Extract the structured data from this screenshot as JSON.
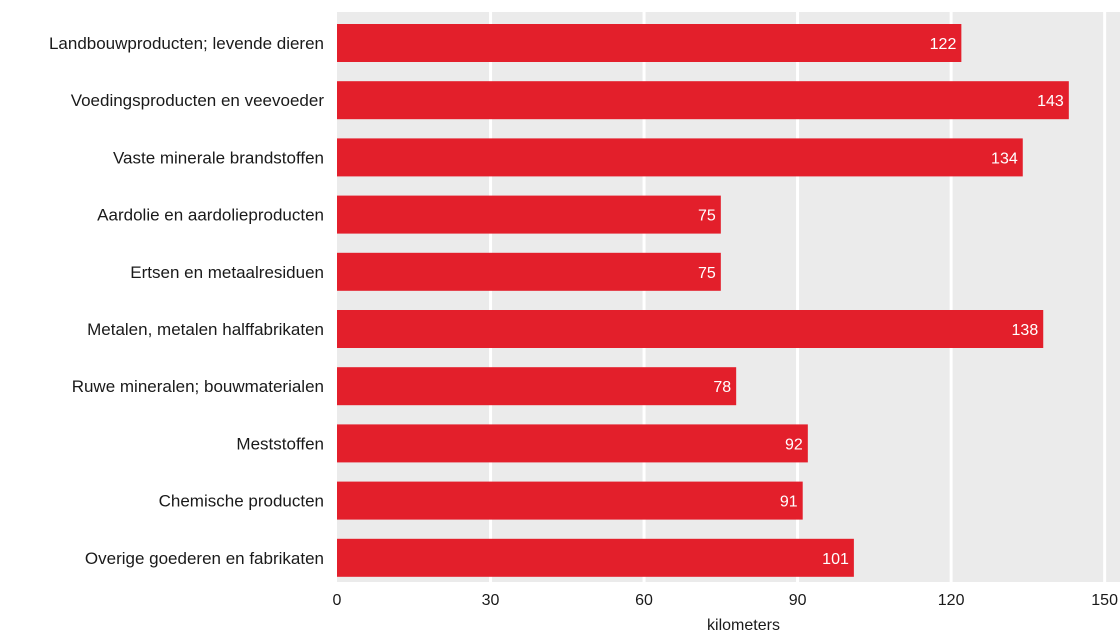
{
  "chart_data": {
    "type": "bar",
    "orientation": "horizontal",
    "categories": [
      "Landbouwproducten; levende dieren",
      "Voedingsproducten en veevoeder",
      "Vaste minerale brandstoffen",
      "Aardolie en aardolieproducten",
      "Ertsen en metaalresiduen",
      "Metalen, metalen halffabrikaten",
      "Ruwe mineralen; bouwmaterialen",
      "Meststoffen",
      "Chemische producten",
      "Overige goederen en fabrikaten"
    ],
    "values": [
      122,
      143,
      134,
      75,
      75,
      138,
      78,
      92,
      91,
      101
    ],
    "xlabel": "kilometers",
    "ylabel": "",
    "xlim": [
      0,
      153
    ],
    "xticks": [
      0,
      30,
      60,
      90,
      120,
      150
    ],
    "bar_color": "#e31f2b",
    "plot_background": "#ebebeb",
    "grid_color": "#ffffff",
    "grid": true,
    "data_labels": true
  }
}
